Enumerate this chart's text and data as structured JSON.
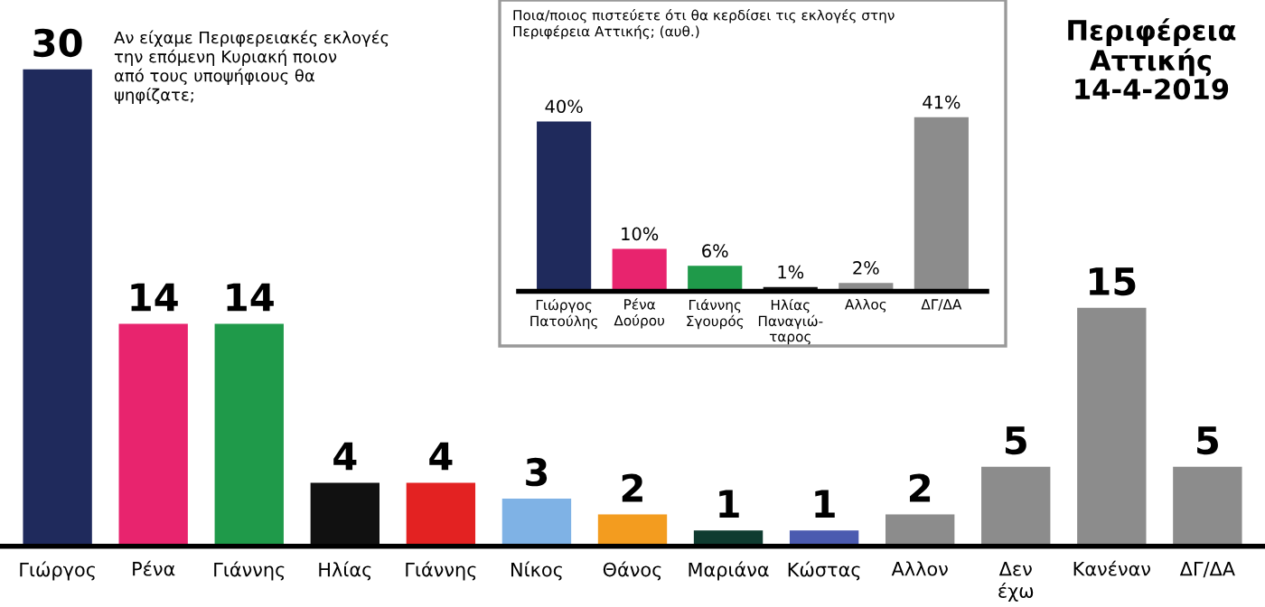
{
  "chart_data": [
    {
      "type": "bar",
      "title": "Περιφέρεια Αττικής 14-4-2019",
      "subtitle": "Αν είχαμε Περιφερειακές εκλογές την επόμενη Κυριακή ποιον από τους υποψήφιους θα ψηφίζατε;",
      "categories": [
        "Γιώργος",
        "Ρένα",
        "Γιάννης",
        "Ηλίας",
        "Γιάννης",
        "Νίκος",
        "Θάνος",
        "Μαριάνα",
        "Κώστας",
        "Αλλον",
        "Δεν έχω",
        "Κανέναν",
        "ΔΓ/ΔΑ"
      ],
      "values": [
        30,
        14,
        14,
        4,
        4,
        3,
        2,
        1,
        1,
        2,
        5,
        15,
        5
      ],
      "colors": [
        "#1f2a5c",
        "#e8246e",
        "#1f9a4a",
        "#111111",
        "#e32222",
        "#7fb2e5",
        "#f39c1f",
        "#0f3b30",
        "#4b5bb0",
        "#8c8c8c",
        "#8c8c8c",
        "#8c8c8c",
        "#8c8c8c"
      ],
      "data_labels": true,
      "grid": false,
      "legend": false
    },
    {
      "type": "bar",
      "title": "Ποια/ποιος πιστεύετε ότι θα κερδίσει τις εκλογές στην Περιφέρεια Αττικής; (αυθ.)",
      "categories": [
        "Γιώργος Πατούλης",
        "Ρένα Δούρου",
        "Γιάννης Σγουρός",
        "Ηλίας Παναγιώ-ταρος",
        "Αλλος",
        "ΔΓ/ΔΑ"
      ],
      "values": [
        40,
        10,
        6,
        1,
        2,
        41
      ],
      "value_labels": [
        "40%",
        "10%",
        "6%",
        "1%",
        "2%",
        "41%"
      ],
      "colors": [
        "#1f2a5c",
        "#e8246e",
        "#1f9a4a",
        "#111111",
        "#8c8c8c",
        "#8c8c8c"
      ],
      "grid": false,
      "legend": false
    }
  ]
}
